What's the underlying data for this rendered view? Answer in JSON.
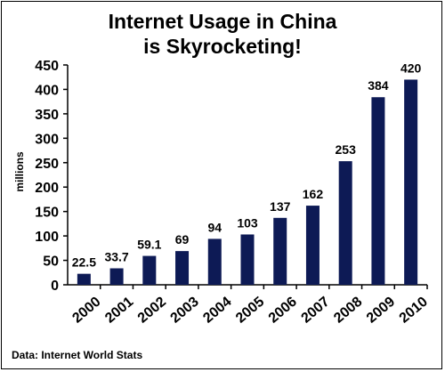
{
  "chart_data": {
    "type": "bar",
    "title_line1": "Internet Usage in China",
    "title_line2": "is Skyrocketing!",
    "ylabel": "millions",
    "xlabel": "",
    "source": "Data: Internet World Stats",
    "categories": [
      "2000",
      "2001",
      "2002",
      "2003",
      "2004",
      "2005",
      "2006",
      "2007",
      "2008",
      "2009",
      "2010"
    ],
    "values": [
      22.5,
      33.7,
      59.1,
      69,
      94,
      103,
      137,
      162,
      253,
      384,
      420
    ],
    "value_labels": [
      "22.5",
      "33.7",
      "59.1",
      "69",
      "94",
      "103",
      "137",
      "162",
      "253",
      "384",
      "420"
    ],
    "ylim": [
      0,
      450
    ],
    "yticks": [
      0,
      50,
      100,
      150,
      200,
      250,
      300,
      350,
      400,
      450
    ],
    "grid": false,
    "bar_color": "#0d1a55"
  }
}
